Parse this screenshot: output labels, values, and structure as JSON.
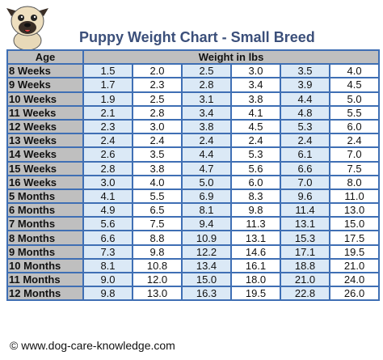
{
  "title": "Puppy Weight Chart - Small Breed",
  "footer": "© www.dog-care-knowledge.com",
  "chart_data": {
    "type": "table",
    "title": "Puppy Weight Chart - Small Breed",
    "headers": {
      "age": "Age",
      "weight": "Weight in lbs"
    },
    "rows": [
      {
        "age": "8 Weeks",
        "values": [
          "1.5",
          "2.0",
          "2.5",
          "3.0",
          "3.5",
          "4.0"
        ]
      },
      {
        "age": "9 Weeks",
        "values": [
          "1.7",
          "2.3",
          "2.8",
          "3.4",
          "3.9",
          "4.5"
        ]
      },
      {
        "age": "10 Weeks",
        "values": [
          "1.9",
          "2.5",
          "3.1",
          "3.8",
          "4.4",
          "5.0"
        ]
      },
      {
        "age": "11 Weeks",
        "values": [
          "2.1",
          "2.8",
          "3.4",
          "4.1",
          "4.8",
          "5.5"
        ]
      },
      {
        "age": "12 Weeks",
        "values": [
          "2.3",
          "3.0",
          "3.8",
          "4.5",
          "5.3",
          "6.0"
        ]
      },
      {
        "age": "13 Weeks",
        "values": [
          "2.4",
          "2.4",
          "2.4",
          "2.4",
          "2.4",
          "2.4"
        ]
      },
      {
        "age": "14 Weeks",
        "values": [
          "2.6",
          "3.5",
          "4.4",
          "5.3",
          "6.1",
          "7.0"
        ]
      },
      {
        "age": "15 Weeks",
        "values": [
          "2.8",
          "3.8",
          "4.7",
          "5.6",
          "6.6",
          "7.5"
        ]
      },
      {
        "age": "16 Weeks",
        "values": [
          "3.0",
          "4.0",
          "5.0",
          "6.0",
          "7.0",
          "8.0"
        ]
      },
      {
        "age": "5 Months",
        "values": [
          "4.1",
          "5.5",
          "6.9",
          "8.3",
          "9.6",
          "11.0"
        ]
      },
      {
        "age": "6 Months",
        "values": [
          "4.9",
          "6.5",
          "8.1",
          "9.8",
          "11.4",
          "13.0"
        ]
      },
      {
        "age": "7 Months",
        "values": [
          "5.6",
          "7.5",
          "9.4",
          "11.3",
          "13.1",
          "15.0"
        ]
      },
      {
        "age": "8 Months",
        "values": [
          "6.6",
          "8.8",
          "10.9",
          "13.1",
          "15.3",
          "17.5"
        ]
      },
      {
        "age": "9 Months",
        "values": [
          "7.3",
          "9.8",
          "12.2",
          "14.6",
          "17.1",
          "19.5"
        ]
      },
      {
        "age": "10 Months",
        "values": [
          "8.1",
          "10.8",
          "13.4",
          "16.1",
          "18.8",
          "21.0"
        ]
      },
      {
        "age": "11 Months",
        "values": [
          "9.0",
          "12.0",
          "15.0",
          "18.0",
          "21.0",
          "24.0"
        ]
      },
      {
        "age": "12 Months",
        "values": [
          "9.8",
          "13.0",
          "16.3",
          "19.5",
          "22.8",
          "26.0"
        ]
      }
    ]
  },
  "colors": {
    "title": "#3b4f7a",
    "grid": "#3f6fb4",
    "age_fill": "#bfbfbf",
    "stripe": "#dbe9f6"
  },
  "icons": {
    "logo": "pug-dog-icon"
  }
}
